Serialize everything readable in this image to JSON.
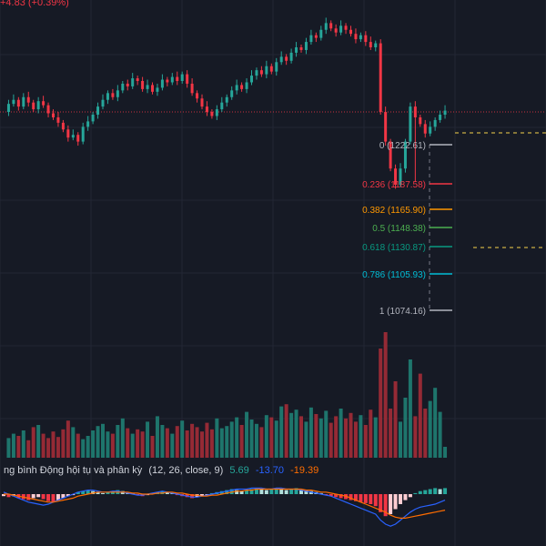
{
  "header": {
    "change_text": "+4.83 (+0.39%)"
  },
  "colors": {
    "background": "#161a25",
    "up": "#26a69a",
    "down": "#f23645",
    "grid": "#222633",
    "macd_line": "#2962ff",
    "signal_line": "#ff6d00",
    "ref_line": "#f23645",
    "dash_box": "#f6d24a"
  },
  "chart_data": {
    "type": "candlestick",
    "title": "",
    "grid": true,
    "fibonacci": {
      "levels": [
        {
          "ratio": "0",
          "price": "1222.61",
          "label": "0 (1222.61)",
          "color": "#b2b5be"
        },
        {
          "ratio": "0.236",
          "price": "1187.58",
          "label": "0.236 (1187.58)",
          "color": "#f23645"
        },
        {
          "ratio": "0.382",
          "price": "1165.90",
          "label": "0.382 (1165.90)",
          "color": "#ff9800"
        },
        {
          "ratio": "0.5",
          "price": "1148.38",
          "label": "0.5 (1148.38)",
          "color": "#4caf50"
        },
        {
          "ratio": "0.618",
          "price": "1130.87",
          "label": "0.618 (1130.87)",
          "color": "#089981"
        },
        {
          "ratio": "0.786",
          "price": "1105.93",
          "label": "0.786 (1105.93)",
          "color": "#00bcd4"
        },
        {
          "ratio": "1",
          "price": "1074.16",
          "label": "1 (1074.16)",
          "color": "#b2b5be"
        }
      ]
    },
    "price_path": [
      1222,
      1228,
      1231,
      1226,
      1233,
      1229,
      1224,
      1230,
      1227,
      1221,
      1218,
      1214,
      1209,
      1203,
      1205,
      1200,
      1211,
      1215,
      1220,
      1226,
      1231,
      1236,
      1233,
      1238,
      1243,
      1241,
      1247,
      1245,
      1239,
      1242,
      1237,
      1240,
      1246,
      1244,
      1248,
      1245,
      1250,
      1243,
      1236,
      1232,
      1226,
      1222,
      1219,
      1224,
      1229,
      1233,
      1238,
      1242,
      1239,
      1244,
      1249,
      1253,
      1250,
      1256,
      1252,
      1259,
      1263,
      1260,
      1266,
      1270,
      1268,
      1274,
      1279,
      1277,
      1283,
      1288,
      1284,
      1281,
      1286,
      1283,
      1280,
      1276,
      1279,
      1274,
      1270,
      1273,
      1222,
      1200,
      1180,
      1168,
      1180,
      1200,
      1226,
      1218,
      1213,
      1206,
      1211,
      1216,
      1220,
      1223
    ],
    "volume_path": [
      14,
      18,
      22,
      20,
      25,
      16,
      28,
      30,
      22,
      18,
      24,
      19,
      26,
      34,
      28,
      22,
      17,
      20,
      25,
      29,
      31,
      24,
      22,
      30,
      36,
      27,
      22,
      26,
      24,
      33,
      20,
      38,
      30,
      27,
      22,
      29,
      34,
      25,
      31,
      28,
      24,
      32,
      26,
      36,
      27,
      29,
      33,
      37,
      30,
      42,
      35,
      31,
      28,
      39,
      37,
      34,
      47,
      49,
      41,
      44,
      38,
      33,
      46,
      40,
      36,
      43,
      32,
      38,
      45,
      36,
      41,
      33,
      39,
      30,
      44,
      37,
      100,
      115,
      45,
      70,
      33,
      55,
      90,
      38,
      77,
      45,
      52,
      64,
      42,
      10
    ],
    "macd": {
      "settings": "(12, 26, close, 9)",
      "values": [
        "5.69",
        "-13.70",
        "-19.39"
      ],
      "histogram": [
        -2,
        -3,
        -2,
        -4,
        -5,
        -6,
        -4,
        -3,
        -5,
        -7,
        -8,
        -6,
        -4,
        -2,
        -1,
        2,
        3,
        4,
        3,
        2,
        1,
        2,
        3,
        4,
        3,
        2,
        1,
        -1,
        -2,
        -1,
        1,
        2,
        3,
        2,
        1,
        -1,
        -2,
        -3,
        -4,
        -3,
        -2,
        -1,
        1,
        2,
        3,
        4,
        5,
        4,
        3,
        4,
        5,
        6,
        5,
        4,
        5,
        6,
        5,
        4,
        5,
        6,
        5,
        4,
        3,
        2,
        1,
        -1,
        -2,
        -3,
        -4,
        -5,
        -6,
        -7,
        -8,
        -9,
        -10,
        -12,
        -18,
        -22,
        -20,
        -15,
        -10,
        -6,
        -3,
        1,
        3,
        4,
        5,
        6,
        5,
        6
      ],
      "macd_line": [
        2,
        0,
        -2,
        -4,
        -6,
        -8,
        -9,
        -10,
        -11,
        -10,
        -8,
        -6,
        -4,
        -2,
        0,
        2,
        3,
        4,
        4,
        3,
        2,
        2,
        3,
        3,
        2,
        1,
        0,
        -1,
        -1,
        0,
        1,
        2,
        3,
        2,
        1,
        0,
        -1,
        -2,
        -3,
        -3,
        -2,
        -1,
        0,
        1,
        2,
        3,
        4,
        5,
        5,
        5,
        6,
        6,
        6,
        5,
        5,
        6,
        6,
        5,
        5,
        5,
        4,
        3,
        2,
        1,
        0,
        -1,
        -2,
        -4,
        -6,
        -8,
        -10,
        -12,
        -14,
        -16,
        -18,
        -20,
        -26,
        -30,
        -32,
        -30,
        -26,
        -22,
        -18,
        -15,
        -13,
        -12,
        -11,
        -10,
        -8,
        -6
      ],
      "signal_line": [
        0,
        0,
        -1,
        -2,
        -3,
        -4,
        -5,
        -6,
        -7,
        -8,
        -8,
        -7,
        -6,
        -5,
        -4,
        -2,
        -1,
        0,
        1,
        2,
        2,
        2,
        2,
        2,
        2,
        2,
        1,
        1,
        0,
        0,
        0,
        1,
        1,
        2,
        2,
        1,
        1,
        0,
        -1,
        -1,
        -2,
        -2,
        -1,
        -1,
        0,
        1,
        2,
        3,
        3,
        4,
        4,
        5,
        5,
        5,
        5,
        5,
        5,
        5,
        5,
        5,
        5,
        4,
        4,
        3,
        2,
        2,
        1,
        0,
        -1,
        -2,
        -4,
        -6,
        -8,
        -10,
        -12,
        -14,
        -16,
        -18,
        -21,
        -23,
        -24,
        -24,
        -23,
        -22,
        -21,
        -20,
        -19,
        -18,
        -17,
        -16
      ]
    }
  }
}
